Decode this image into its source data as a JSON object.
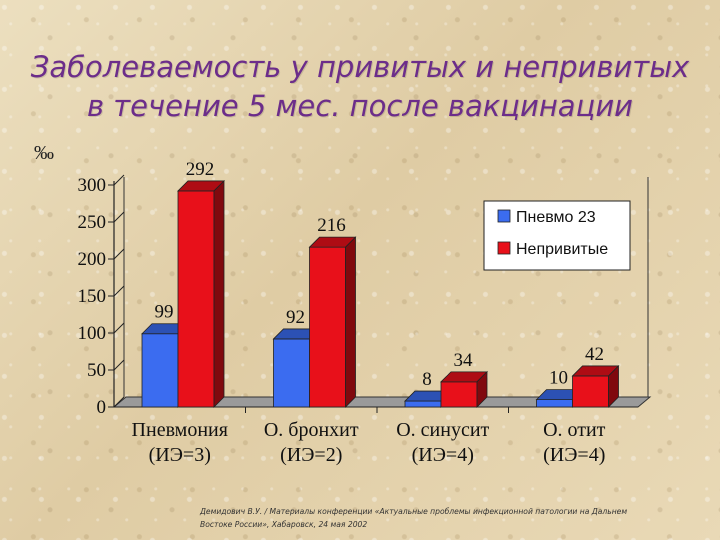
{
  "title": {
    "line1": "Заболеваемость у привитых и непривитых",
    "line2": "в течение 5 мес. после вакцинации"
  },
  "unit_label": "‰",
  "colors": {
    "vaccinated": "#3b6cf0",
    "unvaccinated": "#e8101a",
    "title": "#6c2d8a"
  },
  "chart_data": {
    "type": "bar",
    "categories": [
      "Пневмония",
      "О. бронхит",
      "О. синусит",
      "О. отит"
    ],
    "category_sublabels": [
      "(ИЭ=3)",
      "(ИЭ=2)",
      "(ИЭ=4)",
      "(ИЭ=4)"
    ],
    "series": [
      {
        "name": "Пневмо 23",
        "values": [
          99,
          92,
          8,
          10
        ]
      },
      {
        "name": "Непривитые",
        "values": [
          292,
          216,
          34,
          42
        ]
      }
    ],
    "ylim": [
      0,
      300
    ],
    "yticks": [
      0,
      50,
      100,
      150,
      200,
      250,
      300
    ],
    "legend_position": "top-right",
    "grid": false,
    "three_d": true
  },
  "credit": {
    "line1": "Демидович В.У. / Материалы конференции «Актуальные проблемы инфекционной патологии на Дальнем",
    "line2": "Востоке России», Хабаровск, 24 мая 2002"
  }
}
